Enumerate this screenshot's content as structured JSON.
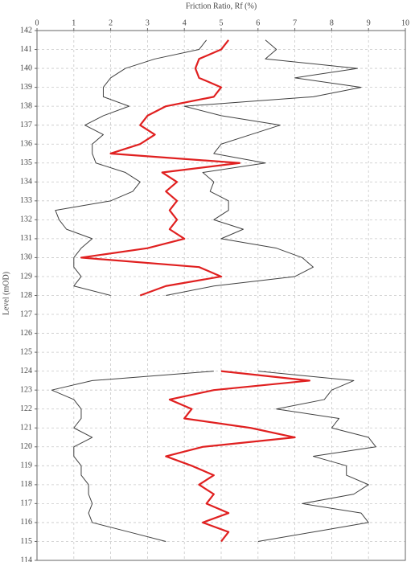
{
  "chart_data": {
    "type": "line",
    "orientation": "vertical",
    "x_label": "Friction Ratio, Rf (%)",
    "y_label": "Level (mOD)",
    "xlim": [
      0,
      10
    ],
    "xticks": [
      0,
      1,
      2,
      3,
      4,
      5,
      6,
      7,
      8,
      9,
      10
    ],
    "ylim": [
      114,
      142
    ],
    "yticks": [
      114,
      115,
      116,
      117,
      118,
      119,
      120,
      121,
      122,
      123,
      124,
      125,
      126,
      127,
      128,
      129,
      130,
      131,
      132,
      133,
      134,
      135,
      136,
      137,
      138,
      139,
      140,
      141,
      142
    ],
    "grid": true,
    "levels": [
      141.5,
      141,
      140.5,
      140,
      139.5,
      139,
      138.5,
      138,
      137.5,
      137,
      136.5,
      136,
      135.5,
      135,
      134.5,
      134,
      133.5,
      133,
      132.5,
      132,
      131.5,
      131,
      130.5,
      130,
      129.5,
      129,
      128.5,
      128,
      126,
      124,
      123.5,
      123,
      122.5,
      122,
      121.5,
      121,
      120.5,
      120,
      119.5,
      119,
      118.5,
      118,
      117.5,
      117,
      116.5,
      116,
      115.5,
      115
    ],
    "series": [
      {
        "color": "#404040",
        "width": 1,
        "values": [
          4.6,
          4.4,
          3.2,
          2.4,
          2.0,
          1.8,
          1.8,
          2.5,
          1.8,
          1.3,
          1.8,
          1.5,
          1.5,
          1.6,
          2.4,
          2.8,
          2.6,
          2.0,
          0.5,
          0.6,
          0.8,
          1.5,
          1.2,
          1.0,
          1.0,
          1.2,
          1.0,
          2.0,
          null,
          4.8,
          1.5,
          0.4,
          1.0,
          1.2,
          1.2,
          1.0,
          1.5,
          1.0,
          1.0,
          1.2,
          1.2,
          1.4,
          1.4,
          1.5,
          1.4,
          1.5,
          2.5,
          3.5
        ]
      },
      {
        "color": "#404040",
        "width": 1,
        "values": [
          6.2,
          6.5,
          6.2,
          8.7,
          7.0,
          8.8,
          7.5,
          4.0,
          5.0,
          6.6,
          5.8,
          5.0,
          4.8,
          6.2,
          4.5,
          4.8,
          4.7,
          5.2,
          5.2,
          4.8,
          5.6,
          5.0,
          6.5,
          7.2,
          7.5,
          7.0,
          4.8,
          3.5,
          null,
          6.0,
          8.6,
          8.0,
          7.8,
          6.5,
          8.2,
          8.0,
          9.0,
          9.2,
          7.5,
          8.4,
          8.4,
          9.0,
          8.6,
          7.2,
          8.8,
          9.0,
          7.5,
          6.0
        ]
      },
      {
        "color": "#e02020",
        "width": 2.2,
        "values": [
          5.2,
          5.0,
          4.4,
          4.3,
          4.4,
          5.0,
          4.8,
          3.5,
          3.0,
          2.8,
          3.2,
          2.8,
          2.0,
          5.5,
          3.4,
          3.8,
          3.5,
          3.8,
          3.6,
          3.8,
          3.6,
          4.0,
          3.0,
          1.2,
          4.4,
          5.0,
          3.5,
          2.8,
          null,
          5.0,
          7.4,
          4.8,
          3.6,
          4.2,
          4.0,
          5.8,
          7.0,
          4.5,
          3.5,
          4.2,
          4.8,
          4.4,
          4.8,
          4.6,
          5.2,
          4.5,
          5.2,
          5.0
        ]
      }
    ]
  }
}
